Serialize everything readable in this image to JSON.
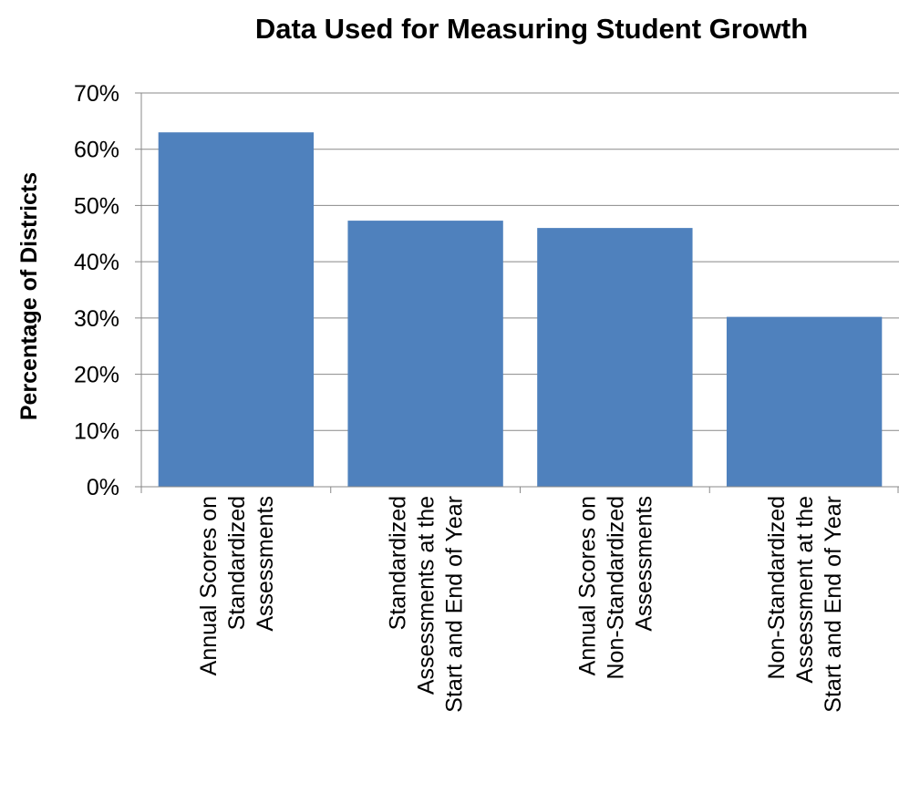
{
  "chart_data": {
    "type": "bar",
    "title": "Data Used for Measuring Student Growth",
    "xlabel": "",
    "ylabel": "Percentage of Districts",
    "categories": [
      [
        "Annual Scores on",
        "Standardized",
        "Assessments"
      ],
      [
        "Standardized",
        "Assessments at the",
        "Start and End of Year"
      ],
      [
        "Annual Scores on",
        "Non-Standardized",
        "Assessments"
      ],
      [
        "Non-Standardized",
        "Assessment at the",
        "Start and End of Year"
      ]
    ],
    "values": [
      63,
      47.3,
      46,
      30.2
    ],
    "ylim": [
      0,
      70
    ],
    "ytick_step": 10,
    "ytick_format": "percent",
    "grid": true,
    "legend": "none",
    "colors": {
      "bar": "#4F81BD",
      "grid": "#898989",
      "axis": "#898989",
      "text": "#000000"
    }
  }
}
